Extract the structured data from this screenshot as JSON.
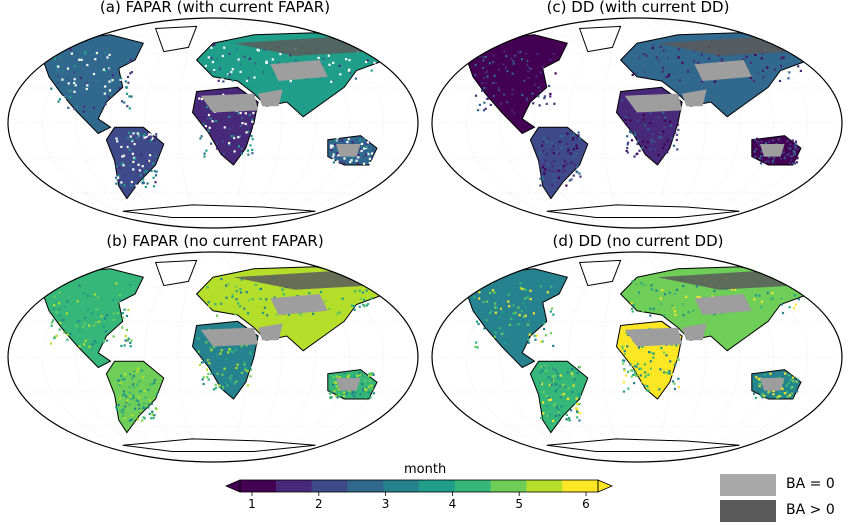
{
  "panels": [
    {
      "id": "a",
      "title": "(a) FAPAR (with current FAPAR)",
      "scheme": "early"
    },
    {
      "id": "c",
      "title": "(c) DD (with current DD)",
      "scheme": "dark"
    },
    {
      "id": "b",
      "title": "(b) FAPAR (no current FAPAR)",
      "scheme": "mid"
    },
    {
      "id": "d",
      "title": "(d) DD (no current DD)",
      "scheme": "late"
    }
  ],
  "colorbar": {
    "label": "month",
    "ticks": [
      "1",
      "2",
      "3",
      "4",
      "5",
      "6"
    ],
    "colors": [
      "#440154",
      "#482878",
      "#3e4a89",
      "#31688e",
      "#26828e",
      "#1f9e89",
      "#35b779",
      "#6ece58",
      "#b5de2b",
      "#fde725"
    ]
  },
  "legend": [
    {
      "label": "BA = 0",
      "color": "#a9a9a9"
    },
    {
      "label": "BA > 0",
      "color": "#595959"
    }
  ],
  "colors": {
    "desert": "#9e9e9e",
    "boreal": "#5a5a5a",
    "ocean": "#ffffff",
    "outline": "#000000"
  }
}
